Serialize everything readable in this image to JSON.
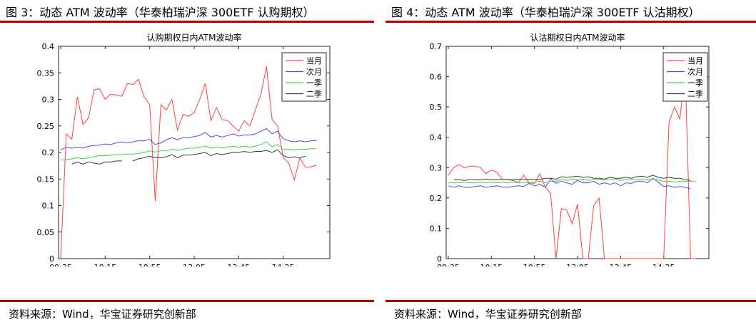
{
  "panels": [
    {
      "figure_title": "图 3：动态 ATM 波动率（华泰柏瑞沪深 300ETF 认购期权）",
      "source": "资料来源：Wind，华宝证券研究创新部"
    },
    {
      "figure_title": "图 4：动态 ATM 波动率（华泰柏瑞沪深 300ETF 认沽期权）",
      "source": "资料来源：Wind，华宝证券研究创新部"
    }
  ],
  "chart_data": [
    {
      "type": "line",
      "title": "认购期权日内ATM波动率",
      "xlabel": "",
      "ylabel": "",
      "x_ticks": [
        "09:35",
        "10:15",
        "10:55",
        "13:05",
        "13:45",
        "14:25"
      ],
      "x_tick_index": [
        0,
        8,
        16,
        24,
        32,
        40
      ],
      "x_count": 49,
      "ylim": [
        0,
        0.4
      ],
      "y_ticks": [
        "0",
        "0.05",
        "0.1",
        "0.15",
        "0.2",
        "0.25",
        "0.3",
        "0.35",
        "0.4"
      ],
      "grid": false,
      "legend_position": "top-right",
      "series": [
        {
          "name": "当月",
          "color": "#ff4040",
          "values": [
            0.0,
            0.235,
            0.225,
            0.305,
            0.253,
            0.265,
            0.318,
            0.32,
            0.3,
            0.31,
            0.308,
            0.306,
            0.33,
            0.328,
            0.338,
            0.305,
            0.29,
            0.108,
            0.29,
            0.28,
            0.3,
            0.242,
            0.272,
            0.268,
            0.275,
            0.3,
            0.33,
            0.26,
            0.285,
            0.262,
            0.26,
            0.25,
            0.24,
            0.26,
            0.25,
            0.28,
            0.31,
            0.362,
            0.262,
            0.25,
            0.19,
            0.18,
            0.148,
            0.19,
            0.172,
            0.173,
            0.176,
            null,
            null
          ]
        },
        {
          "name": "次月",
          "color": "#4b4bf0",
          "values": [
            0.205,
            0.21,
            0.208,
            0.21,
            0.208,
            0.212,
            0.213,
            0.214,
            0.216,
            0.215,
            0.218,
            0.22,
            0.218,
            0.22,
            0.222,
            0.222,
            0.225,
            0.215,
            0.218,
            0.224,
            0.228,
            0.224,
            0.228,
            0.228,
            0.23,
            0.232,
            0.238,
            0.229,
            0.232,
            0.229,
            0.232,
            0.235,
            0.231,
            0.233,
            0.233,
            0.235,
            0.24,
            0.245,
            0.235,
            0.24,
            0.226,
            0.222,
            0.22,
            0.222,
            0.22,
            0.222,
            0.222,
            null,
            null
          ]
        },
        {
          "name": "一季",
          "color": "#3ed63e",
          "values": [
            0.186,
            0.186,
            0.188,
            0.19,
            0.188,
            0.19,
            0.192,
            0.194,
            0.194,
            0.195,
            0.196,
            0.196,
            0.197,
            0.197,
            0.198,
            0.2,
            0.203,
            0.201,
            0.203,
            0.203,
            0.206,
            0.204,
            0.206,
            0.208,
            0.208,
            0.21,
            0.212,
            0.208,
            0.21,
            0.208,
            0.21,
            0.212,
            0.21,
            0.212,
            0.21,
            0.212,
            0.215,
            0.22,
            0.211,
            0.215,
            0.206,
            0.206,
            0.205,
            0.206,
            0.206,
            0.207,
            0.208,
            null,
            null
          ]
        },
        {
          "name": "二季",
          "color": "#3a3a3a",
          "values": [
            null,
            null,
            0.178,
            0.182,
            0.178,
            0.182,
            0.18,
            0.178,
            0.182,
            0.182,
            0.184,
            0.184,
            null,
            0.184,
            0.188,
            0.19,
            0.193,
            0.19,
            0.19,
            0.192,
            0.196,
            0.19,
            0.195,
            0.195,
            0.196,
            0.198,
            0.2,
            0.194,
            0.198,
            0.196,
            0.198,
            0.2,
            0.2,
            0.202,
            0.2,
            0.202,
            0.202,
            0.204,
            0.2,
            0.205,
            0.194,
            0.19,
            0.192,
            0.19,
            0.193,
            null,
            null,
            null,
            null
          ]
        }
      ]
    },
    {
      "type": "line",
      "title": "认沽期权日内ATM波动率",
      "xlabel": "",
      "ylabel": "",
      "x_ticks": [
        "09:35",
        "10:15",
        "10:55",
        "13:05",
        "13:45",
        "14:25"
      ],
      "x_tick_index": [
        0,
        8,
        16,
        24,
        32,
        40
      ],
      "x_count": 49,
      "ylim": [
        0,
        0.7
      ],
      "y_ticks": [
        "0",
        "0.1",
        "0.2",
        "0.3",
        "0.4",
        "0.5",
        "0.6",
        "0.7"
      ],
      "grid": false,
      "legend_position": "top-right",
      "series": [
        {
          "name": "当月",
          "color": "#ff4040",
          "values": [
            0.275,
            0.3,
            0.31,
            0.3,
            0.305,
            0.305,
            0.3,
            0.28,
            0.292,
            0.285,
            0.262,
            0.26,
            0.258,
            0.25,
            0.275,
            0.25,
            0.248,
            0.28,
            0.235,
            0.215,
            0.0,
            0.165,
            0.16,
            0.115,
            0.18,
            0.0,
            0.0,
            0.175,
            0.2,
            0.0,
            0.0,
            0.0,
            0.0,
            0.0,
            0.0,
            0.0,
            0.0,
            0.0,
            0.0,
            0.0,
            0.0,
            0.45,
            0.5,
            0.46,
            0.62,
            0.0,
            0.0,
            null,
            null
          ]
        },
        {
          "name": "次月",
          "color": "#4b4bf0",
          "values": [
            0.24,
            0.235,
            0.24,
            0.235,
            0.235,
            0.238,
            0.24,
            0.235,
            0.238,
            0.24,
            0.236,
            0.235,
            0.238,
            0.24,
            0.238,
            0.248,
            0.24,
            0.245,
            0.235,
            0.262,
            0.248,
            0.255,
            0.25,
            0.245,
            0.258,
            0.25,
            0.25,
            0.255,
            0.245,
            0.25,
            0.245,
            0.25,
            0.24,
            0.25,
            0.248,
            0.255,
            0.255,
            0.25,
            0.265,
            0.252,
            0.238,
            0.24,
            0.235,
            0.238,
            0.235,
            0.23,
            null,
            null,
            null
          ]
        },
        {
          "name": "一季",
          "color": "#3ed63e",
          "values": [
            0.25,
            0.25,
            0.25,
            0.252,
            0.25,
            0.25,
            0.252,
            0.25,
            0.252,
            0.25,
            0.252,
            0.25,
            0.252,
            0.25,
            0.252,
            0.25,
            0.252,
            0.255,
            0.25,
            0.255,
            0.255,
            0.26,
            0.258,
            0.262,
            0.26,
            0.262,
            0.258,
            0.26,
            0.262,
            0.26,
            0.26,
            0.262,
            0.258,
            0.26,
            0.262,
            0.26,
            0.262,
            0.26,
            0.262,
            0.26,
            0.255,
            0.255,
            0.252,
            0.255,
            0.255,
            0.255,
            0.255,
            null,
            null
          ]
        },
        {
          "name": "二季",
          "color": "#3a3a3a",
          "values": [
            null,
            0.26,
            0.26,
            0.258,
            0.26,
            0.26,
            0.26,
            0.262,
            0.26,
            0.26,
            0.262,
            0.26,
            0.26,
            0.262,
            0.26,
            0.262,
            0.262,
            0.26,
            0.265,
            0.265,
            0.262,
            0.27,
            0.268,
            0.27,
            0.272,
            0.268,
            0.27,
            0.265,
            0.265,
            0.262,
            0.268,
            0.265,
            0.265,
            0.268,
            0.265,
            0.27,
            0.272,
            0.268,
            0.275,
            0.268,
            0.265,
            0.268,
            0.265,
            0.265,
            0.26,
            0.258,
            null,
            null,
            null
          ]
        }
      ]
    }
  ]
}
